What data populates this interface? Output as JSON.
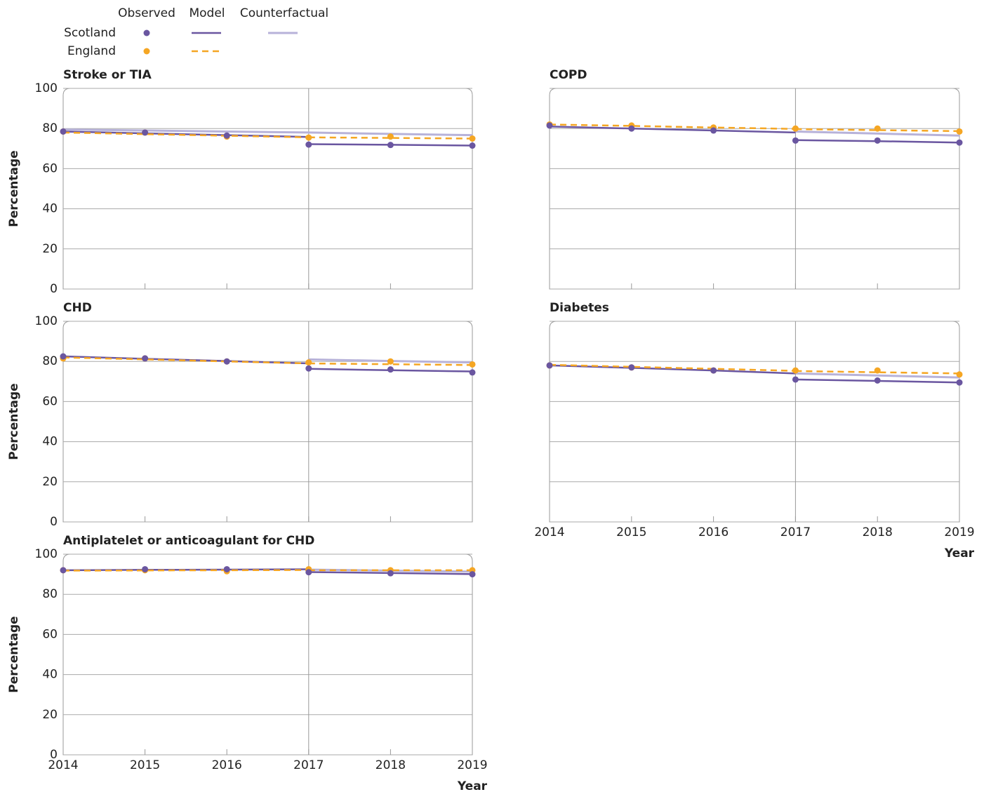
{
  "legend": {
    "headers": [
      "Observed",
      "Model",
      "Counterfactual"
    ],
    "rows": [
      {
        "name": "Scotland",
        "color": "#6a56a0"
      },
      {
        "name": "England",
        "color": "#f5a623"
      }
    ],
    "counterfactual_color": "#b7b2d9"
  },
  "chart_data": [
    {
      "type": "line",
      "title": "Stroke or TIA",
      "ylabel": "Percentage",
      "x": [
        2014,
        2015,
        2016,
        2017,
        2018,
        2019
      ],
      "xlim": [
        2014,
        2019
      ],
      "xticks": [
        2014,
        2015,
        2016,
        2017,
        2018,
        2019
      ],
      "ylim": [
        0,
        100
      ],
      "yticks": [
        0,
        20,
        40,
        60,
        80,
        100
      ],
      "show_ytick_labels": true,
      "show_xtick_labels": false,
      "intervention": 2017,
      "grid": true,
      "series": [
        {
          "observed": [
            78.5,
            78,
            76.5,
            72,
            71.8,
            71.5
          ],
          "model_before": [
            78.5,
            77.6,
            76.7,
            75.8,
            null,
            null
          ],
          "model_after": [
            null,
            null,
            null,
            72.2,
            71.9,
            71.5
          ],
          "counterfactual": [
            79.5,
            79,
            78.5,
            78,
            77.3,
            76.7
          ]
        },
        {
          "observed": [
            78.5,
            78,
            76,
            75.5,
            76,
            75
          ],
          "model_before": [
            78,
            77.2,
            76.4,
            75.6,
            null,
            null
          ],
          "model_after": [
            null,
            null,
            null,
            75.6,
            75.3,
            75
          ]
        }
      ]
    },
    {
      "type": "line",
      "title": "COPD",
      "x": [
        2014,
        2015,
        2016,
        2017,
        2018,
        2019
      ],
      "xlim": [
        2014,
        2019
      ],
      "xticks": [
        2014,
        2015,
        2016,
        2017,
        2018,
        2019
      ],
      "ylim": [
        0,
        100
      ],
      "yticks": [
        0,
        20,
        40,
        60,
        80,
        100
      ],
      "show_ytick_labels": false,
      "show_xtick_labels": false,
      "intervention": 2017,
      "grid": true,
      "series": [
        {
          "observed": [
            81.5,
            80,
            79,
            74,
            74,
            73
          ],
          "model_before": [
            81,
            80,
            79,
            78,
            null,
            null
          ],
          "model_after": [
            null,
            null,
            null,
            74.2,
            73.7,
            73
          ],
          "counterfactual": [
            null,
            null,
            null,
            78.5,
            77.5,
            76.5
          ]
        },
        {
          "observed": [
            82,
            81.5,
            80.5,
            80,
            80,
            78.5
          ],
          "model_before": [
            82,
            81.3,
            80.5,
            79.8,
            null,
            null
          ],
          "model_after": [
            null,
            null,
            null,
            79.7,
            79.2,
            78.7
          ]
        }
      ]
    },
    {
      "type": "line",
      "title": "CHD",
      "ylabel": "Percentage",
      "x": [
        2014,
        2015,
        2016,
        2017,
        2018,
        2019
      ],
      "xlim": [
        2014,
        2019
      ],
      "xticks": [
        2014,
        2015,
        2016,
        2017,
        2018,
        2019
      ],
      "ylim": [
        0,
        100
      ],
      "yticks": [
        0,
        20,
        40,
        60,
        80,
        100
      ],
      "show_ytick_labels": true,
      "show_xtick_labels": false,
      "intervention": 2017,
      "grid": true,
      "series": [
        {
          "observed": [
            82.5,
            81.5,
            80,
            76.5,
            76,
            74.5
          ],
          "model_before": [
            82.5,
            81.3,
            80.2,
            79,
            null,
            null
          ],
          "model_after": [
            null,
            null,
            null,
            76.3,
            75.6,
            75
          ],
          "counterfactual": [
            null,
            null,
            null,
            81,
            80.2,
            79.5
          ]
        },
        {
          "observed": [
            81.5,
            81.5,
            80,
            79.5,
            80,
            78.5
          ],
          "model_before": [
            82,
            81,
            80,
            79,
            null,
            null
          ],
          "model_after": [
            null,
            null,
            null,
            79,
            78.6,
            78.2
          ]
        }
      ]
    },
    {
      "type": "line",
      "title": "Diabetes",
      "xlabel": "Year",
      "x": [
        2014,
        2015,
        2016,
        2017,
        2018,
        2019
      ],
      "xlim": [
        2014,
        2019
      ],
      "xticks": [
        2014,
        2015,
        2016,
        2017,
        2018,
        2019
      ],
      "ylim": [
        0,
        100
      ],
      "yticks": [
        0,
        20,
        40,
        60,
        80,
        100
      ],
      "show_ytick_labels": false,
      "show_xtick_labels": true,
      "intervention": 2017,
      "grid": true,
      "series": [
        {
          "observed": [
            78,
            77,
            75.5,
            71,
            70.5,
            69.5
          ],
          "model_before": [
            78,
            76.8,
            75.5,
            74,
            null,
            null
          ],
          "model_after": [
            null,
            null,
            null,
            71,
            70.3,
            69.5
          ],
          "counterfactual": [
            null,
            null,
            null,
            74,
            73,
            72
          ]
        },
        {
          "observed": [
            78,
            77,
            75.5,
            75.5,
            75.5,
            73.5
          ],
          "model_before": [
            78.3,
            77.3,
            76.3,
            75.3,
            null,
            null
          ],
          "model_after": [
            null,
            null,
            null,
            75.2,
            74.6,
            74
          ]
        }
      ]
    },
    {
      "type": "line",
      "title": "Antiplatelet or anticoagulant for CHD",
      "ylabel": "Percentage",
      "xlabel": "Year",
      "x": [
        2014,
        2015,
        2016,
        2017,
        2018,
        2019
      ],
      "xlim": [
        2014,
        2019
      ],
      "xticks": [
        2014,
        2015,
        2016,
        2017,
        2018,
        2019
      ],
      "ylim": [
        0,
        100
      ],
      "yticks": [
        0,
        20,
        40,
        60,
        80,
        100
      ],
      "show_ytick_labels": true,
      "show_xtick_labels": true,
      "intervention": 2017,
      "grid": true,
      "series": [
        {
          "observed": [
            92,
            92.5,
            92.5,
            91,
            90.5,
            90
          ],
          "model_before": [
            92,
            92.2,
            92.3,
            92.5,
            null,
            null
          ],
          "model_after": [
            null,
            null,
            null,
            91.1,
            90.6,
            90.1
          ],
          "counterfactual": [
            null,
            null,
            null,
            92.3,
            91.8,
            91.3
          ]
        },
        {
          "observed": [
            92,
            92,
            91.5,
            92.5,
            92,
            92
          ],
          "model_before": [
            91.8,
            91.9,
            92,
            92.1,
            null,
            null
          ],
          "model_after": [
            null,
            null,
            null,
            92,
            92,
            92
          ]
        }
      ]
    }
  ]
}
